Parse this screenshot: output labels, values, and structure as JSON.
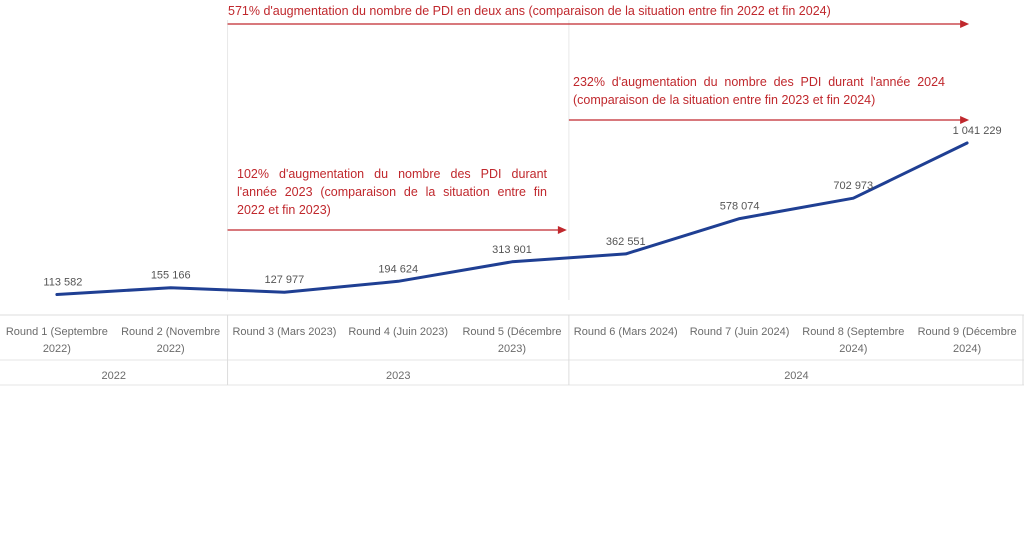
{
  "chart_data": {
    "type": "line",
    "categories": [
      "Round 1 (Septembre 2022)",
      "Round 2 (Novembre 2022)",
      "Round 3 (Mars 2023)",
      "Round 4 (Juin 2023)",
      "Round 5 (Décembre 2023)",
      "Round 6 (Mars 2024)",
      "Round 7 (Juin 2024)",
      "Round 8 (Septembre 2024)",
      "Round 9 (Décembre 2024)"
    ],
    "values": [
      113582,
      155166,
      127977,
      194624,
      313901,
      362551,
      578074,
      702973,
      1041229
    ],
    "value_labels": [
      "113 582",
      "155 166",
      "127 977",
      "194 624",
      "313 901",
      "362 551",
      "578 074",
      "702 973",
      "1 041 229"
    ],
    "year_groups": [
      {
        "label": "2022",
        "from": 0,
        "to": 1
      },
      {
        "label": "2023",
        "from": 2,
        "to": 4
      },
      {
        "label": "2024",
        "from": 5,
        "to": 8
      }
    ],
    "series_color": "#1f3f93",
    "annotation_color": "#c0282d",
    "annotations": [
      {
        "text": "571% d'augmentation du nombre de PDI en deux ans (comparaison de la situation entre fin 2022 et fin 2024)",
        "from": 2,
        "to": 8
      },
      {
        "text": "232% d'augmentation du nombre des PDI durant l'année 2024 (comparaison de la situation entre fin 2023 et fin 2024)",
        "from": 5,
        "to": 8
      },
      {
        "text": "102% d'augmentation du nombre des PDI durant l'année 2023 (comparaison de la situation entre fin 2022 et fin 2023)",
        "from": 2,
        "to": 4
      }
    ],
    "grid": false,
    "legend": "none",
    "ylim": [
      0,
      1100000
    ]
  }
}
